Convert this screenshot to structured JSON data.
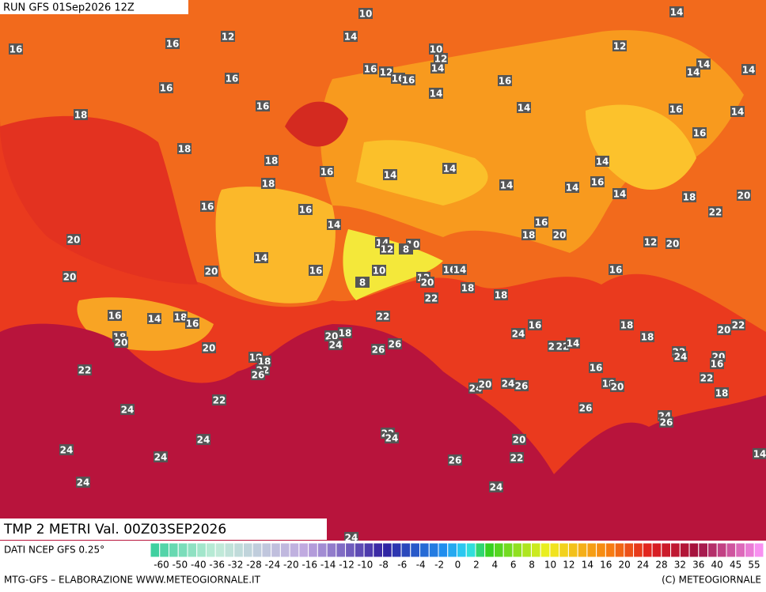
{
  "header": {
    "run": "RUN GFS 01Sep2026 12Z",
    "title": "TMP 2 METRI Val. 00Z03SEP2026"
  },
  "footer": {
    "source": "DATI NCEP GFS 0.25°",
    "credit": "MTG-GFS – ELABORAZIONE WWW.METEOGIORNALE.IT",
    "copyright": "(C) METEOGIORNALE"
  },
  "colorbar": {
    "ticks": [
      -60,
      -50,
      -40,
      -36,
      -32,
      -28,
      -24,
      -20,
      -16,
      -14,
      -12,
      -10,
      -8,
      -6,
      -4,
      -2,
      0,
      2,
      4,
      6,
      8,
      10,
      12,
      14,
      16,
      20,
      24,
      28,
      32,
      36,
      40,
      45,
      55
    ]
  },
  "labels": [
    10,
    14,
    16,
    16,
    12,
    14,
    10,
    12,
    14,
    16,
    12,
    16,
    16,
    12,
    14,
    14,
    14,
    16,
    16,
    16,
    14,
    16,
    14,
    16,
    14,
    18,
    16,
    18,
    18,
    14,
    16,
    14,
    14,
    18,
    14,
    14,
    16,
    14,
    18,
    20,
    16,
    16,
    22,
    14,
    16,
    18,
    20,
    20,
    14,
    12,
    10,
    8,
    12,
    20,
    14,
    20,
    16,
    10,
    16,
    14,
    16,
    20,
    12,
    20,
    8,
    18,
    18,
    22,
    16,
    14,
    18,
    16,
    22,
    18,
    20,
    22,
    18,
    20,
    16,
    24,
    18,
    18,
    20,
    24,
    20,
    26,
    26,
    18,
    18,
    22,
    26,
    22,
    22,
    14,
    22,
    24,
    20,
    16,
    22,
    16,
    22,
    18,
    24,
    20,
    24,
    26,
    18,
    20,
    22,
    24,
    26,
    24,
    26,
    22,
    24,
    24,
    20,
    24,
    24,
    22,
    14,
    26,
    24,
    24,
    24
  ]
}
